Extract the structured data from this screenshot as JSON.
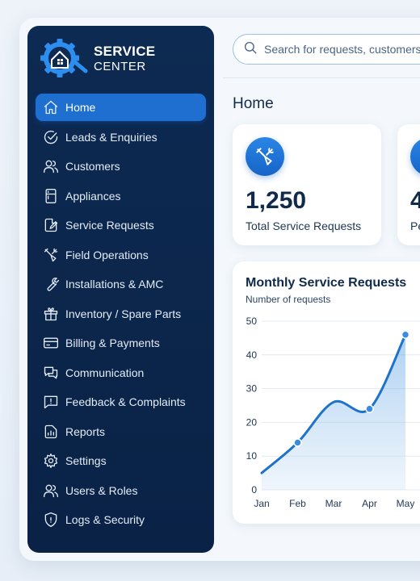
{
  "brand": {
    "line1": "SERVICE",
    "line2": "CENTER",
    "logo_icon": "gear-house-icon"
  },
  "sidebar": {
    "items": [
      {
        "label": "Home",
        "icon": "home-icon",
        "active": true
      },
      {
        "label": "Leads & Enquiries",
        "icon": "check-circle-icon"
      },
      {
        "label": "Customers",
        "icon": "users-icon"
      },
      {
        "label": "Appliances",
        "icon": "appliance-icon"
      },
      {
        "label": "Service Requests",
        "icon": "edit-document-icon"
      },
      {
        "label": "Field Operations",
        "icon": "tools-icon"
      },
      {
        "label": "Installations & AMC",
        "icon": "wrench-icon"
      },
      {
        "label": "Inventory / Spare Parts",
        "icon": "gift-box-icon"
      },
      {
        "label": "Billing & Payments",
        "icon": "credit-card-icon"
      },
      {
        "label": "Communication",
        "icon": "chat-icon"
      },
      {
        "label": "Feedback & Complaints",
        "icon": "feedback-icon"
      },
      {
        "label": "Reports",
        "icon": "report-icon"
      },
      {
        "label": "Settings",
        "icon": "gear-icon"
      },
      {
        "label": "Users & Roles",
        "icon": "users-roles-icon"
      },
      {
        "label": "Logs & Security",
        "icon": "shield-icon"
      }
    ]
  },
  "search": {
    "placeholder": "Search for requests, customers, ..."
  },
  "page": {
    "title": "Home"
  },
  "stats": [
    {
      "value": "1,250",
      "label": "Total Service Requests",
      "icon": "tools-icon"
    },
    {
      "value": "4",
      "label": "Pe",
      "icon": "clock-icon"
    }
  ],
  "colors": {
    "sidebar_bg": "#0d2a52",
    "accent": "#1f6fd1",
    "chart_line": "#1e73c9"
  },
  "chart_data": {
    "type": "area",
    "title": "Monthly Service Requests",
    "subtitle": "Number of requests",
    "categories": [
      "Jan",
      "Feb",
      "Mar",
      "Apr",
      "May"
    ],
    "values": [
      5,
      14,
      26,
      24,
      46
    ],
    "y_ticks": [
      0,
      10,
      20,
      30,
      40,
      50
    ],
    "ylim": [
      0,
      50
    ],
    "grid": true
  }
}
